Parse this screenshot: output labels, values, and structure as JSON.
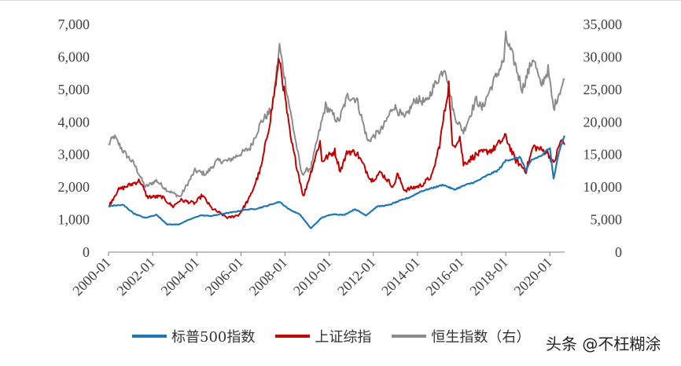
{
  "watermark": "头条 @不枉糊涂",
  "chart_data": {
    "type": "line",
    "title": "",
    "xlabel": "",
    "ylabel": "",
    "y_left_lim": [
      0,
      7000
    ],
    "y_right_lim": [
      0,
      35000
    ],
    "y_left_ticks": [
      "0",
      "1,000",
      "2,000",
      "3,000",
      "4,000",
      "5,000",
      "6,000",
      "7,000"
    ],
    "y_right_ticks": [
      "0",
      "5,000",
      "10,000",
      "15,000",
      "20,000",
      "25,000",
      "30,000",
      "35,000"
    ],
    "x_ticks": [
      "2000-01",
      "2002-01",
      "2004-01",
      "2006-01",
      "2008-01",
      "2010-01",
      "2012-01",
      "2014-01",
      "2016-01",
      "2018-01",
      "2020-01"
    ],
    "x_range": [
      "2000-01",
      "2020-09"
    ],
    "grid": false,
    "legend_position": "bottom",
    "series": [
      {
        "name": "标普500指数",
        "axis": "left",
        "color": "#1f77b4",
        "points": [
          [
            "2000-01",
            1420
          ],
          [
            "2000-09",
            1450
          ],
          [
            "2001-03",
            1180
          ],
          [
            "2001-09",
            1050
          ],
          [
            "2002-03",
            1150
          ],
          [
            "2002-09",
            850
          ],
          [
            "2003-03",
            850
          ],
          [
            "2003-09",
            1000
          ],
          [
            "2004-03",
            1130
          ],
          [
            "2004-09",
            1110
          ],
          [
            "2005-03",
            1180
          ],
          [
            "2005-09",
            1230
          ],
          [
            "2006-03",
            1300
          ],
          [
            "2006-09",
            1330
          ],
          [
            "2007-03",
            1420
          ],
          [
            "2007-09",
            1530
          ],
          [
            "2007-10",
            1550
          ],
          [
            "2008-03",
            1320
          ],
          [
            "2008-09",
            1160
          ],
          [
            "2009-03",
            730
          ],
          [
            "2009-09",
            1060
          ],
          [
            "2010-03",
            1170
          ],
          [
            "2010-09",
            1140
          ],
          [
            "2011-03",
            1320
          ],
          [
            "2011-09",
            1130
          ],
          [
            "2012-03",
            1400
          ],
          [
            "2012-09",
            1440
          ],
          [
            "2013-03",
            1570
          ],
          [
            "2013-09",
            1690
          ],
          [
            "2014-03",
            1870
          ],
          [
            "2014-09",
            1970
          ],
          [
            "2015-03",
            2070
          ],
          [
            "2015-09",
            1920
          ],
          [
            "2016-03",
            2060
          ],
          [
            "2016-09",
            2170
          ],
          [
            "2017-03",
            2360
          ],
          [
            "2017-09",
            2520
          ],
          [
            "2018-01",
            2820
          ],
          [
            "2018-09",
            2910
          ],
          [
            "2018-12",
            2500
          ],
          [
            "2019-03",
            2830
          ],
          [
            "2019-09",
            2980
          ],
          [
            "2020-01",
            3230
          ],
          [
            "2020-03",
            2250
          ],
          [
            "2020-06",
            3100
          ],
          [
            "2020-09",
            3580
          ]
        ]
      },
      {
        "name": "上证综指",
        "axis": "left",
        "color": "#c00000",
        "points": [
          [
            "2000-01",
            1400
          ],
          [
            "2000-06",
            1900
          ],
          [
            "2001-06",
            2200
          ],
          [
            "2001-10",
            1700
          ],
          [
            "2002-06",
            1700
          ],
          [
            "2002-12",
            1400
          ],
          [
            "2003-04",
            1600
          ],
          [
            "2003-12",
            1500
          ],
          [
            "2004-04",
            1750
          ],
          [
            "2004-09",
            1350
          ],
          [
            "2005-06",
            1050
          ],
          [
            "2005-12",
            1150
          ],
          [
            "2006-06",
            1700
          ],
          [
            "2006-12",
            2600
          ],
          [
            "2007-05",
            4100
          ],
          [
            "2007-10",
            5950
          ],
          [
            "2008-04",
            3500
          ],
          [
            "2008-11",
            1700
          ],
          [
            "2009-08",
            3400
          ],
          [
            "2009-09",
            2800
          ],
          [
            "2010-04",
            3100
          ],
          [
            "2010-07",
            2500
          ],
          [
            "2010-11",
            3100
          ],
          [
            "2011-04",
            3050
          ],
          [
            "2011-12",
            2200
          ],
          [
            "2012-05",
            2450
          ],
          [
            "2012-12",
            2000
          ],
          [
            "2013-02",
            2400
          ],
          [
            "2013-06",
            1900
          ],
          [
            "2014-03",
            2050
          ],
          [
            "2014-09",
            2350
          ],
          [
            "2015-01",
            3300
          ],
          [
            "2015-06",
            5150
          ],
          [
            "2015-08",
            3200
          ],
          [
            "2015-12",
            3550
          ],
          [
            "2016-02",
            2700
          ],
          [
            "2016-09",
            3000
          ],
          [
            "2017-06",
            3150
          ],
          [
            "2018-01",
            3550
          ],
          [
            "2018-06",
            2850
          ],
          [
            "2018-12",
            2500
          ],
          [
            "2019-04",
            3250
          ],
          [
            "2019-12",
            3050
          ],
          [
            "2020-03",
            2700
          ],
          [
            "2020-07",
            3450
          ],
          [
            "2020-09",
            3300
          ]
        ]
      },
      {
        "name": "恒生指数（右）",
        "axis": "right",
        "color": "#8c8c8c",
        "points": [
          [
            "2000-01",
            16500
          ],
          [
            "2000-04",
            17800
          ],
          [
            "2000-09",
            15500
          ],
          [
            "2001-03",
            13500
          ],
          [
            "2001-09",
            10000
          ],
          [
            "2002-03",
            11000
          ],
          [
            "2002-09",
            9500
          ],
          [
            "2003-04",
            8500
          ],
          [
            "2003-12",
            12500
          ],
          [
            "2004-06",
            12000
          ],
          [
            "2004-12",
            14000
          ],
          [
            "2005-06",
            14000
          ],
          [
            "2005-12",
            15000
          ],
          [
            "2006-06",
            16000
          ],
          [
            "2006-12",
            20000
          ],
          [
            "2007-06",
            22000
          ],
          [
            "2007-10",
            31600
          ],
          [
            "2008-03",
            23000
          ],
          [
            "2008-10",
            12000
          ],
          [
            "2009-03",
            13000
          ],
          [
            "2009-11",
            22500
          ],
          [
            "2010-06",
            20000
          ],
          [
            "2010-11",
            24000
          ],
          [
            "2011-04",
            23500
          ],
          [
            "2011-10",
            17000
          ],
          [
            "2012-06",
            19000
          ],
          [
            "2012-12",
            22500
          ],
          [
            "2013-06",
            20500
          ],
          [
            "2013-12",
            23500
          ],
          [
            "2014-06",
            23000
          ],
          [
            "2014-09",
            25000
          ],
          [
            "2015-04",
            28500
          ],
          [
            "2015-09",
            21000
          ],
          [
            "2016-02",
            18500
          ],
          [
            "2016-09",
            23500
          ],
          [
            "2016-12",
            22000
          ],
          [
            "2017-06",
            26000
          ],
          [
            "2017-12",
            29500
          ],
          [
            "2018-01",
            33000
          ],
          [
            "2018-06",
            29000
          ],
          [
            "2018-10",
            25000
          ],
          [
            "2019-04",
            30000
          ],
          [
            "2019-08",
            25500
          ],
          [
            "2019-12",
            28000
          ],
          [
            "2020-03",
            22000
          ],
          [
            "2020-06",
            24500
          ],
          [
            "2020-09",
            26500
          ]
        ]
      }
    ]
  }
}
